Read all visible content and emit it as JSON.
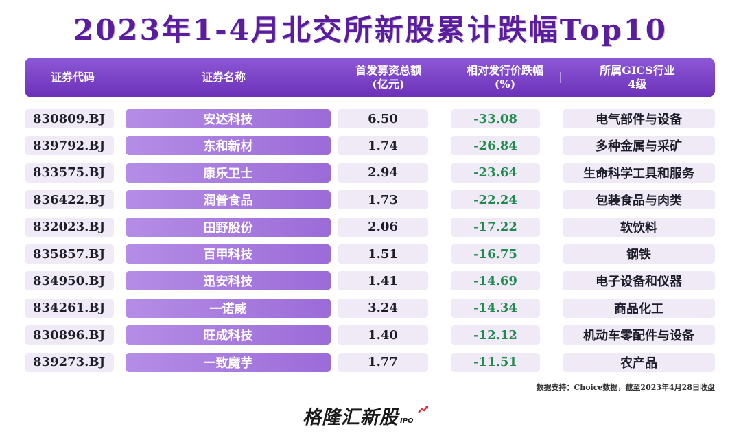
{
  "title": "2023年1-4月北交所新股累计跌幅Top10",
  "headers": {
    "code": "证券代码",
    "name": "证券名称",
    "amount_line1": "首发募资总额",
    "amount_line2": "(亿元)",
    "pct_line1": "相对发行价跌幅",
    "pct_line2": "(%)",
    "industry_line1": "所属GICS行业",
    "industry_line2": "4级"
  },
  "chart_data": {
    "type": "table",
    "title": "2023年1-4月北交所新股累计跌幅Top10",
    "columns": [
      "证券代码",
      "证券名称",
      "首发募资总额(亿元)",
      "相对发行价跌幅(%)",
      "所属GICS行业4级"
    ],
    "rows": [
      {
        "code": "830809.BJ",
        "name": "安达科技",
        "amount": "6.50",
        "pct": "-33.08",
        "industry": "电气部件与设备"
      },
      {
        "code": "839792.BJ",
        "name": "东和新材",
        "amount": "1.74",
        "pct": "-26.84",
        "industry": "多种金属与采矿"
      },
      {
        "code": "833575.BJ",
        "name": "康乐卫士",
        "amount": "2.94",
        "pct": "-23.64",
        "industry": "生命科学工具和服务"
      },
      {
        "code": "836422.BJ",
        "name": "润普食品",
        "amount": "1.73",
        "pct": "-22.24",
        "industry": "包装食品与肉类"
      },
      {
        "code": "832023.BJ",
        "name": "田野股份",
        "amount": "2.06",
        "pct": "-17.22",
        "industry": "软饮料"
      },
      {
        "code": "835857.BJ",
        "name": "百甲科技",
        "amount": "1.51",
        "pct": "-16.75",
        "industry": "钢铁"
      },
      {
        "code": "834950.BJ",
        "name": "迅安科技",
        "amount": "1.41",
        "pct": "-14.69",
        "industry": "电子设备和仪器"
      },
      {
        "code": "834261.BJ",
        "name": "一诺威",
        "amount": "3.24",
        "pct": "-14.34",
        "industry": "商品化工"
      },
      {
        "code": "830896.BJ",
        "name": "旺成科技",
        "amount": "1.40",
        "pct": "-12.12",
        "industry": "机动车零配件与设备"
      },
      {
        "code": "839273.BJ",
        "name": "一致魔芋",
        "amount": "1.77",
        "pct": "-11.51",
        "industry": "农产品"
      }
    ]
  },
  "source": "数据支持：Choice数据，截至2023年4月28日收盘",
  "logo": {
    "text": "格隆汇新股",
    "suffix": "IPO"
  },
  "colors": {
    "accent": "#6b31b8",
    "name_cell": "#a97ce0",
    "negative": "#1f8a4c",
    "cell_bg": "#efeaf6"
  }
}
